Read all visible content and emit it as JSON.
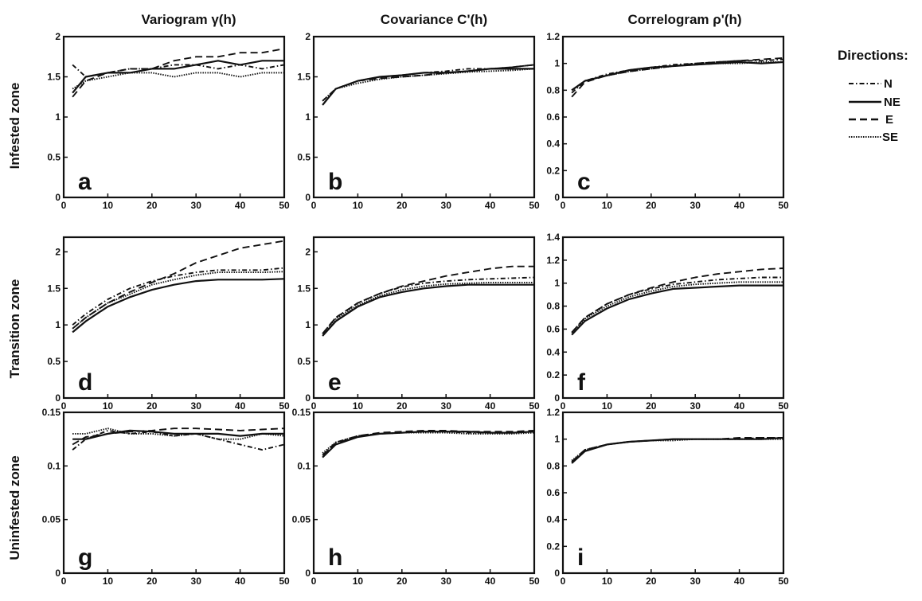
{
  "column_titles": [
    "Variogram  γ(h)",
    "Covariance C'(h)",
    "Correlogram ρ'(h)"
  ],
  "row_titles": [
    "Infested zone",
    "Transition zone",
    "Uninfested zone"
  ],
  "legend": {
    "title": "Directions:",
    "entries": [
      {
        "label": "N",
        "style": "dashdot"
      },
      {
        "label": "NE",
        "style": "solid"
      },
      {
        "label": "E",
        "style": "dashed"
      },
      {
        "label": "SE",
        "style": "dotted"
      }
    ]
  },
  "chart_data": [
    {
      "type": "line",
      "panel": "a",
      "row": 0,
      "col": 0,
      "xlim": [
        0,
        50
      ],
      "ylim": [
        0,
        2
      ],
      "xticks": [
        0,
        10,
        20,
        30,
        40,
        50
      ],
      "yticks": [
        0,
        0.5,
        1,
        1.5,
        2
      ],
      "ytick_labels": [
        "0",
        "0.5",
        "1",
        "1.5",
        "2"
      ],
      "x": [
        2,
        5,
        10,
        15,
        20,
        25,
        30,
        35,
        40,
        45,
        50
      ],
      "series": [
        {
          "direction": "N",
          "values": [
            1.65,
            1.5,
            1.55,
            1.6,
            1.6,
            1.65,
            1.65,
            1.6,
            1.65,
            1.6,
            1.65
          ]
        },
        {
          "direction": "NE",
          "values": [
            1.3,
            1.5,
            1.55,
            1.55,
            1.6,
            1.6,
            1.65,
            1.7,
            1.65,
            1.7,
            1.7
          ]
        },
        {
          "direction": "E",
          "values": [
            1.25,
            1.45,
            1.55,
            1.6,
            1.6,
            1.7,
            1.75,
            1.75,
            1.8,
            1.8,
            1.85
          ]
        },
        {
          "direction": "SE",
          "values": [
            1.35,
            1.45,
            1.5,
            1.55,
            1.55,
            1.5,
            1.55,
            1.55,
            1.5,
            1.55,
            1.55
          ]
        }
      ]
    },
    {
      "type": "line",
      "panel": "b",
      "row": 0,
      "col": 1,
      "xlim": [
        0,
        50
      ],
      "ylim": [
        0,
        2
      ],
      "xticks": [
        0,
        10,
        20,
        30,
        40,
        50
      ],
      "yticks": [
        0,
        0.5,
        1,
        1.5,
        2
      ],
      "ytick_labels": [
        "0",
        "0.5",
        "1",
        "1.5",
        "2"
      ],
      "x": [
        2,
        5,
        10,
        15,
        20,
        25,
        30,
        35,
        40,
        45,
        50
      ],
      "series": [
        {
          "direction": "N",
          "values": [
            1.2,
            1.35,
            1.45,
            1.5,
            1.52,
            1.55,
            1.57,
            1.6,
            1.6,
            1.62,
            1.65
          ]
        },
        {
          "direction": "NE",
          "values": [
            1.15,
            1.35,
            1.45,
            1.5,
            1.52,
            1.55,
            1.55,
            1.57,
            1.6,
            1.6,
            1.6
          ]
        },
        {
          "direction": "E",
          "values": [
            1.15,
            1.35,
            1.45,
            1.48,
            1.5,
            1.52,
            1.55,
            1.57,
            1.6,
            1.62,
            1.65
          ]
        },
        {
          "direction": "SE",
          "values": [
            1.2,
            1.35,
            1.42,
            1.47,
            1.5,
            1.52,
            1.54,
            1.56,
            1.57,
            1.58,
            1.6
          ]
        }
      ]
    },
    {
      "type": "line",
      "panel": "c",
      "row": 0,
      "col": 2,
      "xlim": [
        0,
        50
      ],
      "ylim": [
        0,
        1.2
      ],
      "xticks": [
        0,
        10,
        20,
        30,
        40,
        50
      ],
      "yticks": [
        0,
        0.2,
        0.4,
        0.6,
        0.8,
        1,
        1.2
      ],
      "ytick_labels": [
        "0",
        "0.2",
        "0.4",
        "0.6",
        "0.8",
        "1",
        "1.2"
      ],
      "x": [
        2,
        5,
        10,
        15,
        20,
        25,
        30,
        35,
        40,
        45,
        50
      ],
      "series": [
        {
          "direction": "N",
          "values": [
            0.78,
            0.87,
            0.92,
            0.95,
            0.97,
            0.99,
            1.0,
            1.01,
            1.02,
            1.02,
            1.03
          ]
        },
        {
          "direction": "NE",
          "values": [
            0.8,
            0.87,
            0.91,
            0.95,
            0.97,
            0.98,
            0.99,
            1.0,
            1.01,
            1.0,
            1.01
          ]
        },
        {
          "direction": "E",
          "values": [
            0.75,
            0.86,
            0.91,
            0.94,
            0.96,
            0.98,
            1.0,
            1.01,
            1.02,
            1.03,
            1.04
          ]
        },
        {
          "direction": "SE",
          "values": [
            0.8,
            0.87,
            0.91,
            0.94,
            0.96,
            0.98,
            0.99,
            1.0,
            1.0,
            1.01,
            1.01
          ]
        }
      ]
    },
    {
      "type": "line",
      "panel": "d",
      "row": 1,
      "col": 0,
      "xlim": [
        0,
        50
      ],
      "ylim": [
        0,
        2.2
      ],
      "xticks": [
        0,
        10,
        20,
        30,
        40,
        50
      ],
      "yticks": [
        0,
        0.5,
        1,
        1.5,
        2
      ],
      "ytick_labels": [
        "0",
        "0.5",
        "1",
        "1.5",
        "2"
      ],
      "x": [
        2,
        5,
        10,
        15,
        20,
        25,
        30,
        35,
        40,
        45,
        50
      ],
      "series": [
        {
          "direction": "N",
          "values": [
            1.0,
            1.15,
            1.35,
            1.5,
            1.6,
            1.67,
            1.72,
            1.75,
            1.75,
            1.75,
            1.78
          ]
        },
        {
          "direction": "NE",
          "values": [
            0.9,
            1.05,
            1.25,
            1.38,
            1.48,
            1.55,
            1.6,
            1.62,
            1.62,
            1.62,
            1.63
          ]
        },
        {
          "direction": "E",
          "values": [
            0.95,
            1.1,
            1.3,
            1.45,
            1.58,
            1.7,
            1.85,
            1.95,
            2.05,
            2.1,
            2.15
          ]
        },
        {
          "direction": "SE",
          "values": [
            0.95,
            1.1,
            1.3,
            1.42,
            1.55,
            1.62,
            1.68,
            1.72,
            1.72,
            1.72,
            1.73
          ]
        }
      ]
    },
    {
      "type": "line",
      "panel": "e",
      "row": 1,
      "col": 1,
      "xlim": [
        0,
        50
      ],
      "ylim": [
        0,
        2.2
      ],
      "xticks": [
        0,
        10,
        20,
        30,
        40,
        50
      ],
      "yticks": [
        0,
        0.5,
        1,
        1.5,
        2
      ],
      "ytick_labels": [
        "0",
        "0.5",
        "1",
        "1.5",
        "2"
      ],
      "x": [
        2,
        5,
        10,
        15,
        20,
        25,
        30,
        35,
        40,
        45,
        50
      ],
      "series": [
        {
          "direction": "N",
          "values": [
            0.88,
            1.1,
            1.3,
            1.43,
            1.52,
            1.57,
            1.6,
            1.62,
            1.63,
            1.64,
            1.65
          ]
        },
        {
          "direction": "NE",
          "values": [
            0.85,
            1.05,
            1.25,
            1.38,
            1.45,
            1.5,
            1.53,
            1.55,
            1.55,
            1.55,
            1.55
          ]
        },
        {
          "direction": "E",
          "values": [
            0.88,
            1.1,
            1.3,
            1.43,
            1.53,
            1.6,
            1.67,
            1.72,
            1.77,
            1.8,
            1.8
          ]
        },
        {
          "direction": "SE",
          "values": [
            0.88,
            1.08,
            1.27,
            1.4,
            1.48,
            1.53,
            1.56,
            1.57,
            1.58,
            1.58,
            1.58
          ]
        }
      ]
    },
    {
      "type": "line",
      "panel": "f",
      "row": 1,
      "col": 2,
      "xlim": [
        0,
        50
      ],
      "ylim": [
        0,
        1.4
      ],
      "xticks": [
        0,
        10,
        20,
        30,
        40,
        50
      ],
      "yticks": [
        0,
        0.2,
        0.4,
        0.6,
        0.8,
        1,
        1.2,
        1.4
      ],
      "ytick_labels": [
        "0",
        "0.2",
        "0.4",
        "0.6",
        "0.8",
        "1",
        "1.2",
        "1.4"
      ],
      "x": [
        2,
        5,
        10,
        15,
        20,
        25,
        30,
        35,
        40,
        45,
        50
      ],
      "series": [
        {
          "direction": "N",
          "values": [
            0.57,
            0.7,
            0.82,
            0.9,
            0.95,
            0.99,
            1.01,
            1.03,
            1.04,
            1.05,
            1.05
          ]
        },
        {
          "direction": "NE",
          "values": [
            0.55,
            0.67,
            0.78,
            0.86,
            0.91,
            0.95,
            0.96,
            0.97,
            0.98,
            0.98,
            0.98
          ]
        },
        {
          "direction": "E",
          "values": [
            0.57,
            0.7,
            0.82,
            0.9,
            0.96,
            1.01,
            1.05,
            1.08,
            1.1,
            1.12,
            1.13
          ]
        },
        {
          "direction": "SE",
          "values": [
            0.57,
            0.69,
            0.8,
            0.88,
            0.93,
            0.97,
            0.99,
            1.0,
            1.01,
            1.01,
            1.01
          ]
        }
      ]
    },
    {
      "type": "line",
      "panel": "g",
      "row": 2,
      "col": 0,
      "xlim": [
        0,
        50
      ],
      "ylim": [
        0,
        0.15
      ],
      "xticks": [
        0,
        10,
        20,
        30,
        40,
        50
      ],
      "yticks": [
        0,
        0.05,
        0.1,
        0.15
      ],
      "ytick_labels": [
        "0",
        "0.05",
        "0.1",
        "0.15"
      ],
      "x": [
        2,
        5,
        10,
        15,
        20,
        25,
        30,
        35,
        40,
        45,
        50
      ],
      "series": [
        {
          "direction": "N",
          "values": [
            0.115,
            0.125,
            0.133,
            0.13,
            0.132,
            0.128,
            0.13,
            0.125,
            0.12,
            0.115,
            0.12
          ]
        },
        {
          "direction": "NE",
          "values": [
            0.125,
            0.125,
            0.13,
            0.133,
            0.132,
            0.13,
            0.13,
            0.13,
            0.128,
            0.13,
            0.13
          ]
        },
        {
          "direction": "E",
          "values": [
            0.12,
            0.127,
            0.13,
            0.132,
            0.133,
            0.135,
            0.135,
            0.134,
            0.133,
            0.134,
            0.135
          ]
        },
        {
          "direction": "SE",
          "values": [
            0.13,
            0.13,
            0.135,
            0.13,
            0.13,
            0.128,
            0.13,
            0.125,
            0.125,
            0.13,
            0.128
          ]
        }
      ]
    },
    {
      "type": "line",
      "panel": "h",
      "row": 2,
      "col": 1,
      "xlim": [
        0,
        50
      ],
      "ylim": [
        0,
        0.15
      ],
      "xticks": [
        0,
        10,
        20,
        30,
        40,
        50
      ],
      "yticks": [
        0,
        0.05,
        0.1,
        0.15
      ],
      "ytick_labels": [
        "0",
        "0.05",
        "0.1",
        "0.15"
      ],
      "x": [
        2,
        5,
        10,
        15,
        20,
        25,
        30,
        35,
        40,
        45,
        50
      ],
      "series": [
        {
          "direction": "N",
          "values": [
            0.11,
            0.122,
            0.128,
            0.13,
            0.131,
            0.132,
            0.132,
            0.131,
            0.131,
            0.131,
            0.132
          ]
        },
        {
          "direction": "NE",
          "values": [
            0.108,
            0.12,
            0.127,
            0.13,
            0.131,
            0.132,
            0.132,
            0.132,
            0.131,
            0.131,
            0.132
          ]
        },
        {
          "direction": "E",
          "values": [
            0.11,
            0.121,
            0.128,
            0.131,
            0.132,
            0.133,
            0.133,
            0.132,
            0.132,
            0.132,
            0.133
          ]
        },
        {
          "direction": "SE",
          "values": [
            0.112,
            0.122,
            0.128,
            0.13,
            0.131,
            0.131,
            0.131,
            0.13,
            0.13,
            0.13,
            0.131
          ]
        }
      ]
    },
    {
      "type": "line",
      "panel": "i",
      "row": 2,
      "col": 2,
      "xlim": [
        0,
        50
      ],
      "ylim": [
        0,
        1.2
      ],
      "xticks": [
        0,
        10,
        20,
        30,
        40,
        50
      ],
      "yticks": [
        0,
        0.2,
        0.4,
        0.6,
        0.8,
        1,
        1.2
      ],
      "ytick_labels": [
        "0",
        "0.2",
        "0.4",
        "0.6",
        "0.8",
        "1",
        "1.2"
      ],
      "x": [
        2,
        5,
        10,
        15,
        20,
        25,
        30,
        35,
        40,
        45,
        50
      ],
      "series": [
        {
          "direction": "N",
          "values": [
            0.83,
            0.92,
            0.96,
            0.98,
            0.99,
            1.0,
            1.0,
            1.0,
            1.0,
            1.01,
            1.01
          ]
        },
        {
          "direction": "NE",
          "values": [
            0.82,
            0.91,
            0.96,
            0.98,
            0.99,
            1.0,
            1.0,
            1.0,
            1.0,
            1.0,
            1.01
          ]
        },
        {
          "direction": "E",
          "values": [
            0.83,
            0.92,
            0.96,
            0.98,
            0.99,
            1.0,
            1.0,
            1.0,
            1.01,
            1.01,
            1.01
          ]
        },
        {
          "direction": "SE",
          "values": [
            0.84,
            0.92,
            0.96,
            0.98,
            0.99,
            0.99,
            1.0,
            1.0,
            1.0,
            1.0,
            1.0
          ]
        }
      ]
    }
  ]
}
